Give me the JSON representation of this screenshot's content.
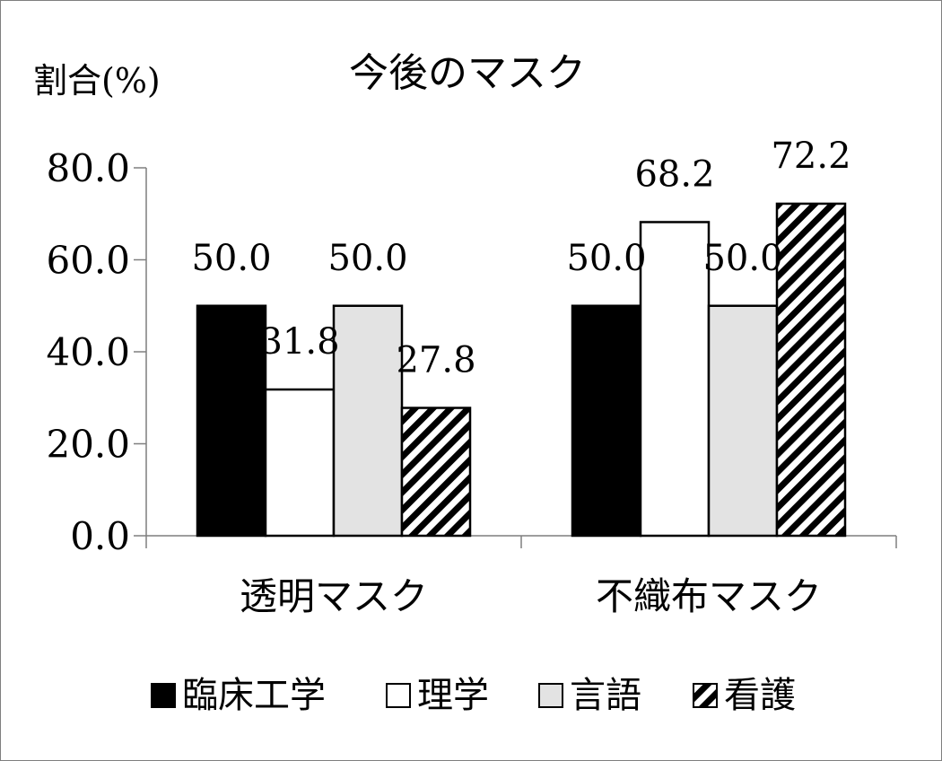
{
  "chart_data": {
    "type": "bar",
    "title": "今後のマスク",
    "ylabel": "割合(%)",
    "xlabel": "",
    "categories": [
      "透明マスク",
      "不織布マスク"
    ],
    "ylim": [
      0,
      80
    ],
    "yticks": [
      0,
      20,
      40,
      60,
      80
    ],
    "ytick_labels": [
      "0.0",
      "20.0",
      "40.0",
      "60.0",
      "80.0"
    ],
    "legend_position": "bottom",
    "grid": false,
    "series": [
      {
        "name": "臨床工学",
        "values": [
          50.0,
          50.0
        ],
        "labels": [
          "50.0",
          "50.0"
        ],
        "fill": "#000000",
        "pattern": "solid"
      },
      {
        "name": "理学",
        "values": [
          31.8,
          68.2
        ],
        "labels": [
          "31.8",
          "68.2"
        ],
        "fill": "#ffffff",
        "pattern": "solid"
      },
      {
        "name": "言語",
        "values": [
          50.0,
          50.0
        ],
        "labels": [
          "50.0",
          "50.0"
        ],
        "fill": "#e3e3e3",
        "pattern": "solid"
      },
      {
        "name": "看護",
        "values": [
          27.8,
          72.2
        ],
        "labels": [
          "27.8",
          "72.2"
        ],
        "fill": "#ffffff",
        "pattern": "diagonal-hatch"
      }
    ]
  }
}
